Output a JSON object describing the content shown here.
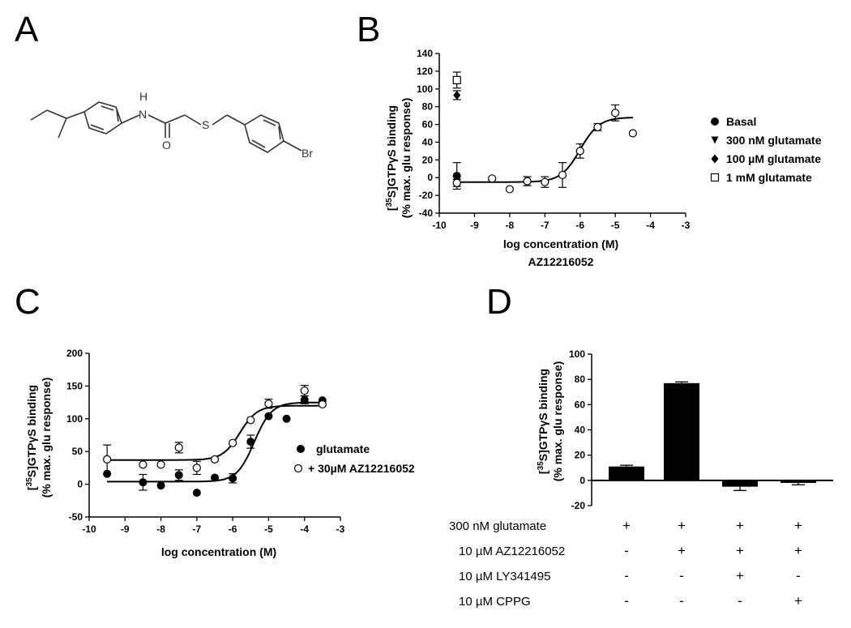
{
  "panel_letters": {
    "a": "A",
    "b": "B",
    "c": "C",
    "d": "D"
  },
  "molecule": {
    "atoms": [
      "H",
      "N",
      "O",
      "S",
      "Br"
    ]
  },
  "chart_data": [
    {
      "panel": "B",
      "type": "scatter",
      "xlabel": "log concentration (M)",
      "sublabel": "AZ12216052",
      "ylabel_line1": "[35S]GTPγS binding",
      "ylabel_line2": "(% max. glu response)",
      "xlim": [
        -10,
        -3
      ],
      "ylim": [
        -40,
        140
      ],
      "xticks": [
        -10,
        -9,
        -8,
        -7,
        -6,
        -5,
        -4,
        -3
      ],
      "yticks": [
        -40,
        -20,
        0,
        20,
        40,
        60,
        80,
        100,
        120,
        140
      ],
      "legend_position": "right",
      "series": [
        {
          "name": "Basal",
          "marker": "filled-circle",
          "points": [
            {
              "x": -9.5,
              "y": 2,
              "err": 15
            }
          ]
        },
        {
          "name": "300 nM glutamate",
          "marker": "filled-triangle-down",
          "points": [
            {
              "x": -9.5,
              "y": -2,
              "err": 0
            }
          ]
        },
        {
          "name": "100 µM glutamate",
          "marker": "filled-diamond",
          "points": [
            {
              "x": -9.5,
              "y": 93,
              "err": 5
            }
          ]
        },
        {
          "name": "1 mM glutamate",
          "marker": "open-square",
          "points": [
            {
              "x": -9.5,
              "y": 110,
              "err": 9
            }
          ]
        },
        {
          "name": "",
          "marker": "open-circle",
          "points": [
            {
              "x": -9.5,
              "y": -6,
              "err": 4
            },
            {
              "x": -8.5,
              "y": -1,
              "err": 0
            },
            {
              "x": -8,
              "y": -13,
              "err": 0
            },
            {
              "x": -7.5,
              "y": -4,
              "err": 5
            },
            {
              "x": -7,
              "y": -5,
              "err": 6
            },
            {
              "x": -6.5,
              "y": 3,
              "err": 14
            },
            {
              "x": -6,
              "y": 30,
              "err": 8
            },
            {
              "x": -5.5,
              "y": 57,
              "err": 4
            },
            {
              "x": -5,
              "y": 73,
              "err": 9
            },
            {
              "x": -4.5,
              "y": 50,
              "err": 0
            }
          ]
        }
      ],
      "fit": {
        "bottom": -5,
        "top": 68,
        "logEC50": -6.0,
        "hill": 1.6,
        "x_range": [
          -9.5,
          -4.5
        ]
      }
    },
    {
      "panel": "C",
      "type": "scatter",
      "xlabel": "log concentration (M)",
      "ylabel_line1": "[35S]GTPγS binding",
      "ylabel_line2": "(% max. glu response)",
      "xlim": [
        -10,
        -3
      ],
      "ylim": [
        -50,
        200
      ],
      "xticks": [
        -10,
        -9,
        -8,
        -7,
        -6,
        -5,
        -4,
        -3
      ],
      "yticks": [
        -50,
        0,
        50,
        100,
        150,
        200
      ],
      "legend_position": "center-right",
      "series": [
        {
          "name": "glutamate",
          "marker": "filled-circle",
          "points": [
            {
              "x": -9.5,
              "y": 16,
              "err": 0
            },
            {
              "x": -8.5,
              "y": 3,
              "err": 12
            },
            {
              "x": -8,
              "y": -2,
              "err": 0
            },
            {
              "x": -7.5,
              "y": 14,
              "err": 8
            },
            {
              "x": -7,
              "y": -13,
              "err": 0
            },
            {
              "x": -6.5,
              "y": 10,
              "err": 0
            },
            {
              "x": -6,
              "y": 9,
              "err": 7
            },
            {
              "x": -5.5,
              "y": 65,
              "err": 10
            },
            {
              "x": -5,
              "y": 104,
              "err": 0
            },
            {
              "x": -4.5,
              "y": 100,
              "err": 0
            },
            {
              "x": -4,
              "y": 129,
              "err": 6
            },
            {
              "x": -3.5,
              "y": 128,
              "err": 0
            }
          ],
          "fit": {
            "bottom": 4,
            "top": 125,
            "logEC50": -5.4,
            "hill": 1.8,
            "x_range": [
              -9.5,
              -3.5
            ]
          }
        },
        {
          "name": "+ 30µM AZ12216052",
          "marker": "open-circle",
          "points": [
            {
              "x": -9.5,
              "y": 38,
              "err": 22
            },
            {
              "x": -8.5,
              "y": 30,
              "err": 0
            },
            {
              "x": -8,
              "y": 30,
              "err": 0
            },
            {
              "x": -7.5,
              "y": 56,
              "err": 8
            },
            {
              "x": -7,
              "y": 25,
              "err": 10
            },
            {
              "x": -6.5,
              "y": 38,
              "err": 0
            },
            {
              "x": -6,
              "y": 63,
              "err": 0
            },
            {
              "x": -5.5,
              "y": 98,
              "err": 0
            },
            {
              "x": -5,
              "y": 123,
              "err": 7
            },
            {
              "x": -4,
              "y": 143,
              "err": 8
            },
            {
              "x": -3.5,
              "y": 122,
              "err": 0
            }
          ],
          "fit": {
            "bottom": 37,
            "top": 120,
            "logEC50": -5.8,
            "hill": 1.8,
            "x_range": [
              -9.5,
              -3.5
            ]
          }
        }
      ]
    },
    {
      "panel": "D",
      "type": "bar",
      "ylabel_line1": "[35S]GTPγS binding",
      "ylabel_line2": "(% max. glu response)",
      "ylim": [
        -20,
        100
      ],
      "yticks": [
        -20,
        0,
        20,
        40,
        60,
        80,
        100
      ],
      "values": [
        11,
        77,
        -5,
        -2
      ],
      "errors": [
        1,
        1,
        3,
        1.5
      ],
      "bar_color": "#000000",
      "conditions": [
        {
          "label": "300 nM glutamate",
          "signs": [
            "+",
            "+",
            "+",
            "+"
          ]
        },
        {
          "label": "10 µM AZ12216052",
          "signs": [
            "-",
            "+",
            "+",
            "+"
          ]
        },
        {
          "label": "10 µM LY341495",
          "signs": [
            "-",
            "-",
            "+",
            "-"
          ]
        },
        {
          "label": "10 µM CPPG",
          "signs": [
            "-",
            "-",
            "-",
            "+"
          ]
        }
      ]
    }
  ]
}
